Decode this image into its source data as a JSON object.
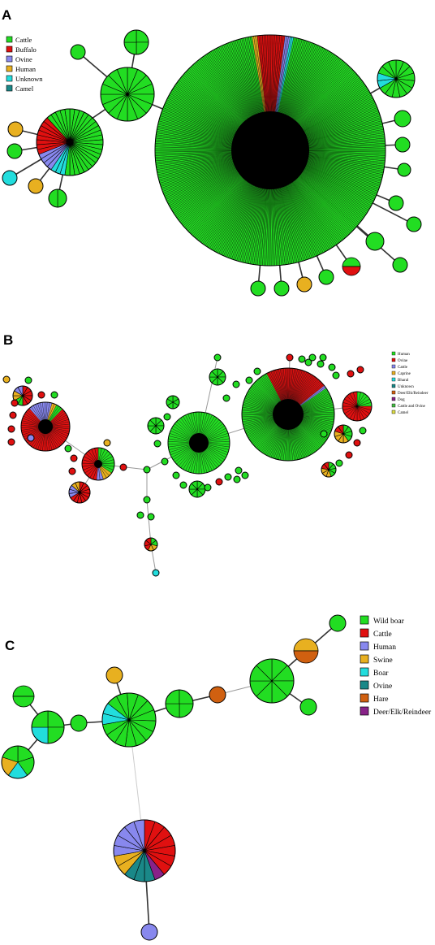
{
  "panels": [
    {
      "letter": "A",
      "legend": [
        {
          "label": "Cattle",
          "color": "#22dd22"
        },
        {
          "label": "Buffalo",
          "color": "#e01010"
        },
        {
          "label": "Ovine",
          "color": "#8888ee"
        },
        {
          "label": "Human",
          "color": "#e8b020"
        },
        {
          "label": "Unknown",
          "color": "#22dddd"
        },
        {
          "label": "Camel",
          "color": "#1a8888"
        }
      ]
    },
    {
      "letter": "B",
      "legend": [
        {
          "label": "Human",
          "color": "#22dd22"
        },
        {
          "label": "Ovine",
          "color": "#e01010"
        },
        {
          "label": "Cattle",
          "color": "#8888ee"
        },
        {
          "label": "Caprine",
          "color": "#e8b020"
        },
        {
          "label": "Bharal",
          "color": "#22dddd"
        },
        {
          "label": "Unknown",
          "color": "#1a8888"
        },
        {
          "label": "Deer/Elk/Reindeer",
          "color": "#d06010"
        },
        {
          "label": "Dog",
          "color": "#882288"
        },
        {
          "label": "Cattle and Ovine",
          "color": "#44bb44"
        },
        {
          "label": "Camel",
          "color": "#dddd44"
        }
      ]
    },
    {
      "letter": "C",
      "legend": [
        {
          "label": "Wild boar",
          "color": "#22dd22"
        },
        {
          "label": "Cattle",
          "color": "#e01010"
        },
        {
          "label": "Human",
          "color": "#8888ee"
        },
        {
          "label": "Swine",
          "color": "#e8b020"
        },
        {
          "label": "Boar",
          "color": "#22dddd"
        },
        {
          "label": "Ovine",
          "color": "#1a8888"
        },
        {
          "label": "Hare",
          "color": "#d06010"
        },
        {
          "label": "Deer/Elk/Reindeer",
          "color": "#882288"
        }
      ]
    }
  ]
}
